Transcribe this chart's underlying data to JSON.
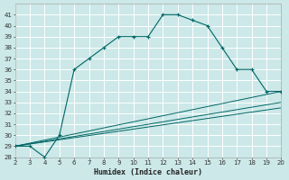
{
  "xlabel": "Humidex (Indice chaleur)",
  "bg_color": "#cce8e8",
  "grid_color": "#ffffff",
  "line_color": "#006666",
  "xlim": [
    2,
    20
  ],
  "ylim": [
    28,
    42
  ],
  "xticks": [
    2,
    3,
    4,
    5,
    6,
    7,
    8,
    9,
    10,
    11,
    12,
    13,
    14,
    15,
    16,
    17,
    18,
    19,
    20
  ],
  "yticks": [
    28,
    29,
    30,
    31,
    32,
    33,
    34,
    35,
    36,
    37,
    38,
    39,
    40,
    41
  ],
  "series": [
    {
      "x": [
        2,
        3,
        4,
        5,
        6,
        7,
        8,
        9,
        10,
        11,
        12,
        13,
        14,
        15,
        16,
        17,
        18,
        19,
        20
      ],
      "y": [
        29,
        29,
        28,
        30,
        36,
        37,
        38,
        39,
        39,
        39,
        41,
        41,
        40.5,
        40,
        38,
        36,
        36,
        34,
        34
      ],
      "marker": true
    },
    {
      "x": [
        2,
        20
      ],
      "y": [
        29,
        34
      ],
      "marker": false
    },
    {
      "x": [
        2,
        20
      ],
      "y": [
        29,
        33
      ],
      "marker": false
    },
    {
      "x": [
        2,
        20
      ],
      "y": [
        29,
        32.5
      ],
      "marker": false
    }
  ]
}
